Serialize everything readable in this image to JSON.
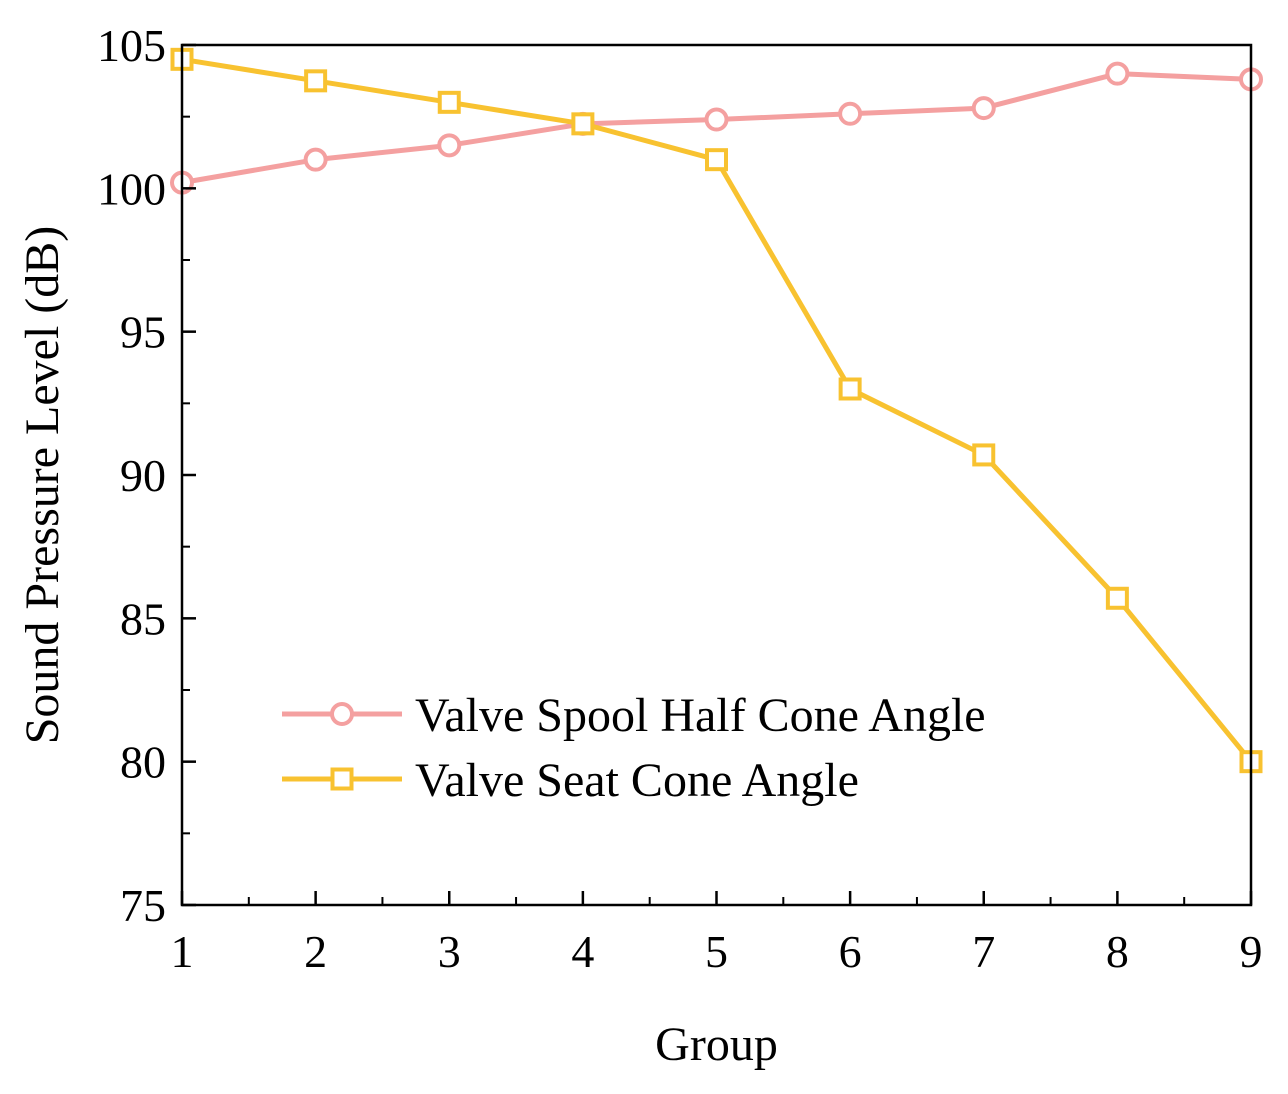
{
  "chart_data": {
    "type": "line",
    "title": "",
    "xlabel": "Group",
    "ylabel": "Sound Pressure Level (dB)",
    "x": [
      1,
      2,
      3,
      4,
      5,
      6,
      7,
      8,
      9
    ],
    "xlim": [
      1,
      9
    ],
    "ylim": [
      75,
      105
    ],
    "xticks": [
      1,
      2,
      3,
      4,
      5,
      6,
      7,
      8,
      9
    ],
    "yticks": [
      75,
      80,
      85,
      90,
      95,
      100,
      105
    ],
    "grid": false,
    "legend_position": "bottom-left",
    "series": [
      {
        "name": "Valve Spool Half Cone Angle",
        "marker": "circle",
        "color": "#F4A0A0",
        "values": [
          100.2,
          101.0,
          101.5,
          102.25,
          102.4,
          102.6,
          102.8,
          104.0,
          103.8
        ]
      },
      {
        "name": "Valve Seat Cone Angle",
        "marker": "square",
        "color": "#F8C230",
        "values": [
          104.5,
          103.75,
          103.0,
          102.25,
          101.0,
          93.0,
          90.7,
          85.7,
          80.0
        ]
      }
    ]
  }
}
